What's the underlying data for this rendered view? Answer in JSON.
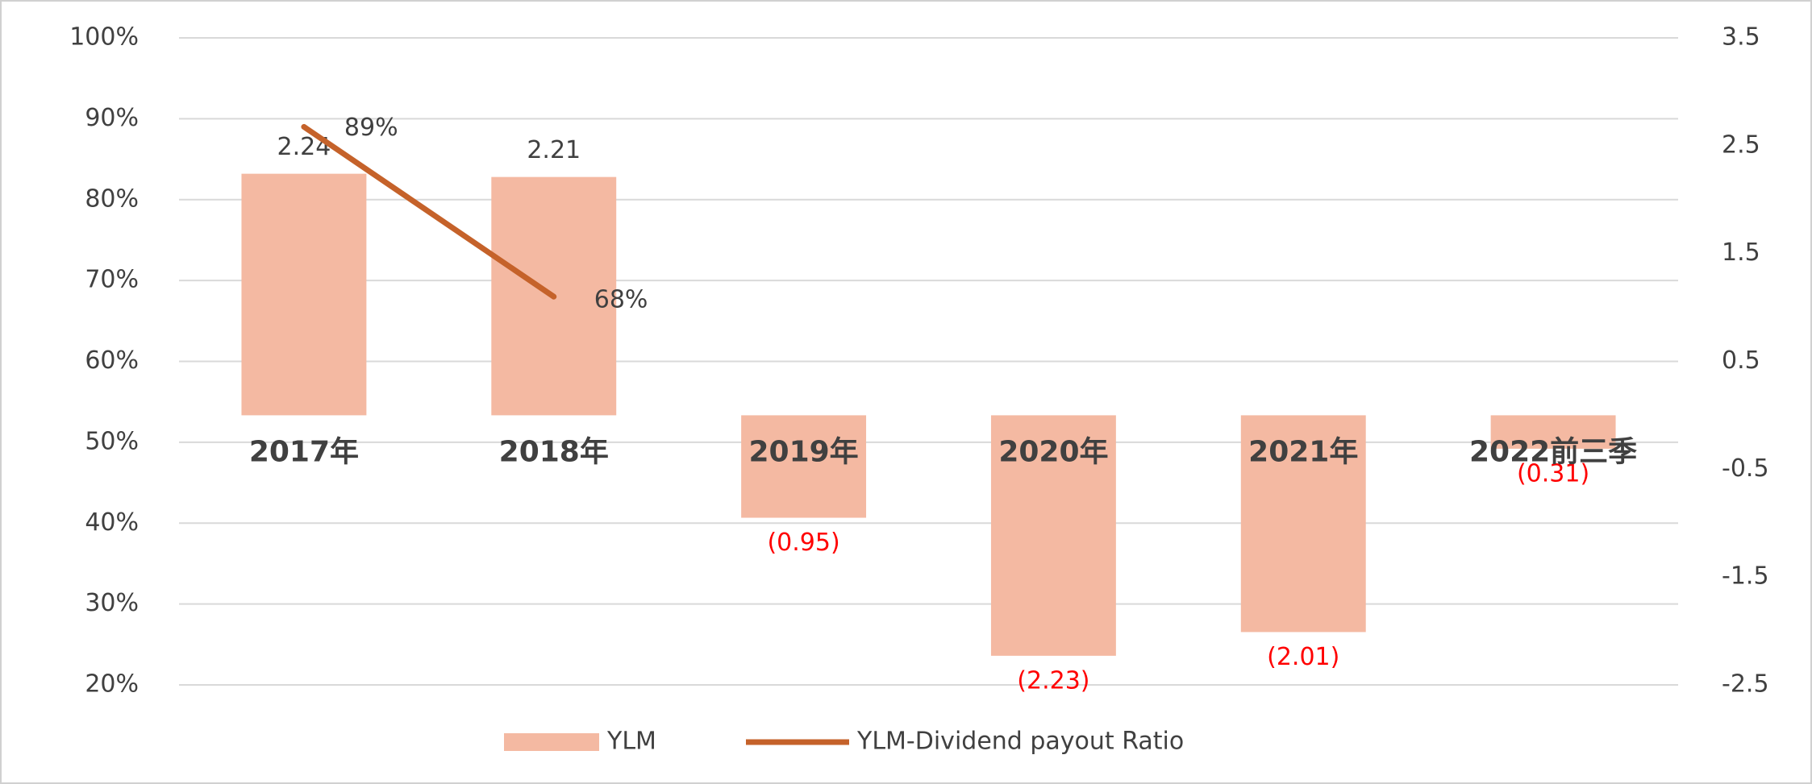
{
  "chart_data": {
    "type": "bar",
    "categories": [
      "2017年",
      "2018年",
      "2019年",
      "2020年",
      "2021年",
      "2022前三季"
    ],
    "series": [
      {
        "name": "YLM",
        "type": "bar",
        "axis": "y2",
        "color": "#f4b9a2",
        "values": [
          2.24,
          2.21,
          -0.95,
          -2.23,
          -2.01,
          -0.31
        ],
        "value_labels": [
          "2.24",
          "2.21",
          "(0.95)",
          "(2.23)",
          "(2.01)",
          "(0.31)"
        ]
      },
      {
        "name": "YLM-Dividend payout Ratio",
        "type": "line",
        "axis": "y",
        "color": "#c5622a",
        "values": [
          89,
          68,
          null,
          null,
          null,
          null
        ],
        "value_labels": [
          "89%",
          "68%",
          null,
          null,
          null,
          null
        ]
      }
    ],
    "ylim": [
      20,
      100
    ],
    "yticks": [
      {
        "value": 100,
        "label": "100%"
      },
      {
        "value": 90,
        "label": "90%"
      },
      {
        "value": 80,
        "label": "80%"
      },
      {
        "value": 70,
        "label": "70%"
      },
      {
        "value": 60,
        "label": "60%"
      },
      {
        "value": 50,
        "label": "50%"
      },
      {
        "value": 40,
        "label": "40%"
      },
      {
        "value": 30,
        "label": "30%"
      },
      {
        "value": 20,
        "label": "20%"
      }
    ],
    "y2lim": [
      -2.5,
      3.5
    ],
    "y2ticks": [
      3.5,
      2.5,
      1.5,
      0.5,
      -0.5,
      -1.5,
      -2.5
    ],
    "grid": true,
    "negative_label_color": "#ff0000",
    "legend": "bottom"
  }
}
